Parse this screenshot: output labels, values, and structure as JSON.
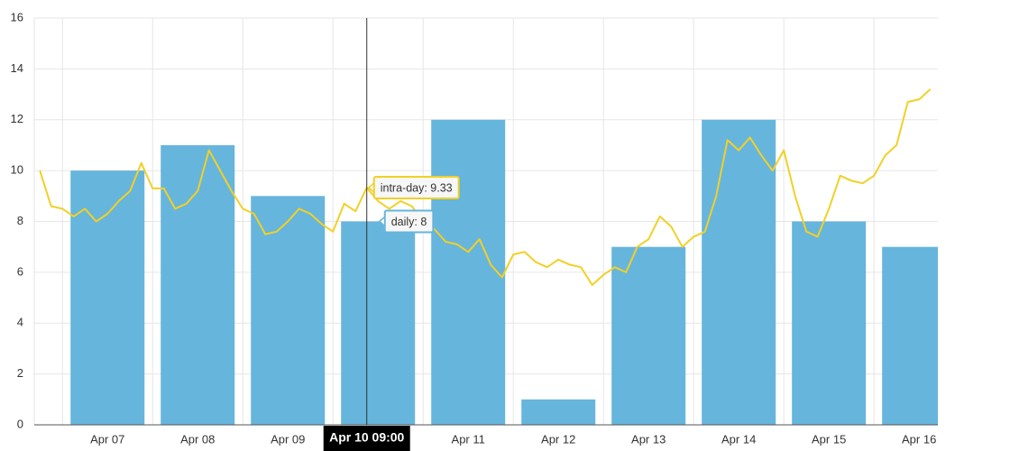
{
  "chart_data": {
    "type": "bar_line",
    "categories": [
      "Apr 07",
      "Apr 08",
      "Apr 09",
      "Apr 10",
      "Apr 11",
      "Apr 12",
      "Apr 13",
      "Apr 14",
      "Apr 15",
      "Apr 16"
    ],
    "series": [
      {
        "type": "bar",
        "color": "#66b5dc",
        "values": [
          10,
          11,
          9,
          8,
          12,
          1,
          7,
          12,
          8,
          7
        ]
      },
      {
        "type": "line",
        "color": "#f2d026",
        "x": [
          "Apr 06 18:00",
          "Apr 06 21:00",
          "Apr 07 00:00",
          "Apr 07 03:00",
          "Apr 07 06:00",
          "Apr 07 09:00",
          "Apr 07 12:00",
          "Apr 07 15:00",
          "Apr 07 18:00",
          "Apr 07 21:00",
          "Apr 08 00:00",
          "Apr 08 03:00",
          "Apr 08 06:00",
          "Apr 08 09:00",
          "Apr 08 12:00",
          "Apr 08 15:00",
          "Apr 08 18:00",
          "Apr 08 21:00",
          "Apr 09 00:00",
          "Apr 09 03:00",
          "Apr 09 06:00",
          "Apr 09 09:00",
          "Apr 09 12:00",
          "Apr 09 15:00",
          "Apr 09 18:00",
          "Apr 09 21:00",
          "Apr 10 00:00",
          "Apr 10 03:00",
          "Apr 10 06:00",
          "Apr 10 09:00",
          "Apr 10 12:00",
          "Apr 10 15:00",
          "Apr 10 18:00",
          "Apr 10 21:00",
          "Apr 11 00:00",
          "Apr 11 03:00",
          "Apr 11 06:00",
          "Apr 11 09:00",
          "Apr 11 12:00",
          "Apr 11 15:00",
          "Apr 11 18:00",
          "Apr 11 21:00",
          "Apr 12 00:00",
          "Apr 12 03:00",
          "Apr 12 06:00",
          "Apr 12 09:00",
          "Apr 12 12:00",
          "Apr 12 15:00",
          "Apr 12 18:00",
          "Apr 12 21:00",
          "Apr 13 00:00",
          "Apr 13 03:00",
          "Apr 13 06:00",
          "Apr 13 09:00",
          "Apr 13 12:00",
          "Apr 13 15:00",
          "Apr 13 18:00",
          "Apr 13 21:00",
          "Apr 14 00:00",
          "Apr 14 03:00",
          "Apr 14 06:00",
          "Apr 14 09:00",
          "Apr 14 12:00",
          "Apr 14 15:00",
          "Apr 14 18:00",
          "Apr 14 21:00",
          "Apr 15 00:00",
          "Apr 15 03:00",
          "Apr 15 06:00",
          "Apr 15 09:00",
          "Apr 15 12:00",
          "Apr 15 15:00",
          "Apr 15 18:00",
          "Apr 15 21:00",
          "Apr 16 00:00",
          "Apr 16 03:00",
          "Apr 16 06:00",
          "Apr 16 09:00",
          "Apr 16 12:00",
          "Apr 16 15:00"
        ],
        "values": [
          10.0,
          8.6,
          8.5,
          8.2,
          8.5,
          8.0,
          8.3,
          8.8,
          9.2,
          10.3,
          9.3,
          9.3,
          8.5,
          8.7,
          9.2,
          10.8,
          10.0,
          9.2,
          8.5,
          8.3,
          7.5,
          7.6,
          8.0,
          8.5,
          8.3,
          7.9,
          7.6,
          8.7,
          8.4,
          9.33,
          8.8,
          8.5,
          8.8,
          8.6,
          8.0,
          7.7,
          7.2,
          7.1,
          6.8,
          7.3,
          6.3,
          5.8,
          6.7,
          6.8,
          6.4,
          6.2,
          6.5,
          6.3,
          6.2,
          5.5,
          5.9,
          6.2,
          6.0,
          7.0,
          7.3,
          8.2,
          7.8,
          7.0,
          7.4,
          7.6,
          9.0,
          11.2,
          10.8,
          11.3,
          10.6,
          10.0,
          10.8,
          9.0,
          7.6,
          7.4,
          8.5,
          9.8,
          9.6,
          9.5,
          9.8,
          10.6,
          11.0,
          12.7,
          12.8,
          13.2
        ]
      }
    ],
    "xlim": [
      "Apr 06 16:30",
      "Apr 16 17:00"
    ],
    "ylim": [
      0,
      16
    ],
    "yticks": [
      0,
      2,
      4,
      6,
      8,
      10,
      12,
      14,
      16
    ],
    "grid": true,
    "crosshair": "Apr 10 09:00",
    "tooltips": [
      "intra-day: 9.33",
      "daily: 8"
    ]
  }
}
